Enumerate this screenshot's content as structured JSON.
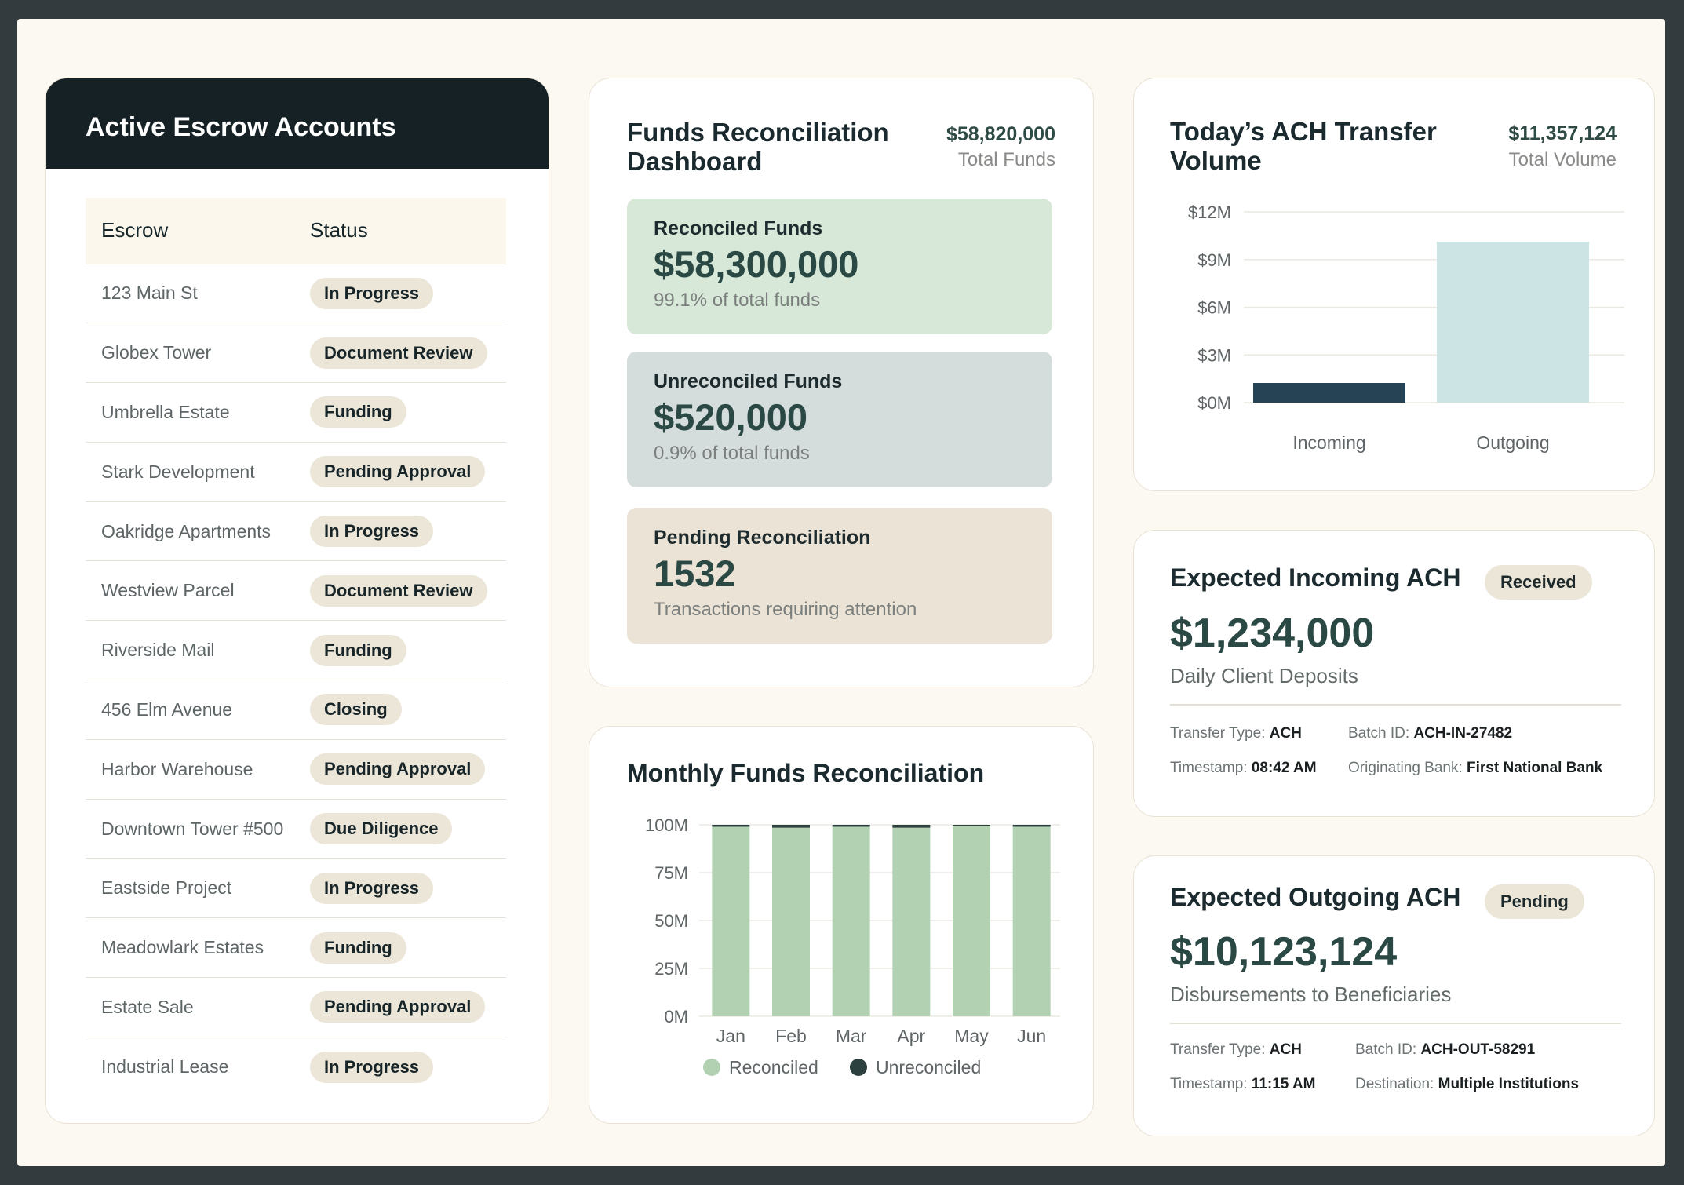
{
  "escrow": {
    "title": "Active Escrow Accounts",
    "columns": [
      "Escrow",
      "Status"
    ],
    "rows": [
      {
        "name": "123 Main St",
        "status": "In Progress"
      },
      {
        "name": "Globex Tower",
        "status": "Document Review"
      },
      {
        "name": "Umbrella Estate",
        "status": "Funding"
      },
      {
        "name": "Stark Development",
        "status": "Pending Approval"
      },
      {
        "name": "Oakridge Apartments",
        "status": "In Progress"
      },
      {
        "name": "Westview Parcel",
        "status": "Document Review"
      },
      {
        "name": "Riverside Mail",
        "status": "Funding"
      },
      {
        "name": "456 Elm Avenue",
        "status": "Closing"
      },
      {
        "name": "Harbor Warehouse",
        "status": "Pending Approval"
      },
      {
        "name": "Downtown Tower #500",
        "status": "Due Diligence"
      },
      {
        "name": "Eastside Project",
        "status": "In Progress"
      },
      {
        "name": "Meadowlark Estates",
        "status": "Funding"
      },
      {
        "name": "Estate Sale",
        "status": "Pending Approval"
      },
      {
        "name": "Industrial Lease",
        "status": "In Progress"
      }
    ]
  },
  "reconciliation": {
    "title_line1": "Funds Reconciliation",
    "title_line2": "Dashboard",
    "total_amount": "$58,820,000",
    "total_label": "Total Funds",
    "reconciled": {
      "label": "Reconciled Funds",
      "value": "$58,300,000",
      "sub": "99.1% of total funds",
      "color": "#d7e7d8"
    },
    "unreconciled": {
      "label": "Unreconciled Funds",
      "value": "$520,000",
      "sub": "0.9% of total funds",
      "color": "#d4dcdc"
    },
    "pending": {
      "label": "Pending Reconciliation",
      "value": "1532",
      "sub": "Transactions requiring attention",
      "color": "#ebe3d5"
    }
  },
  "ach_volume": {
    "title_line1": "Today’s ACH Transfer",
    "title_line2": "Volume",
    "total_amount": "$11,357,124",
    "total_label": "Total Volume"
  },
  "incoming": {
    "title": "Expected Incoming ACH",
    "badge": "Received",
    "amount": "$1,234,000",
    "subtitle": "Daily Client Deposits",
    "transfer_type_label": "Transfer Type:",
    "transfer_type": "ACH",
    "batch_label": "Batch ID:",
    "batch": "ACH-IN-27482",
    "timestamp_label": "Timestamp:",
    "timestamp": "08:42 AM",
    "bank_label": "Originating Bank:",
    "bank": "First National Bank"
  },
  "outgoing": {
    "title": "Expected Outgoing ACH",
    "badge": "Pending",
    "amount": "$10,123,124",
    "subtitle": "Disbursements to Beneficiaries",
    "transfer_type_label": "Transfer Type:",
    "transfer_type": "ACH",
    "batch_label": "Batch ID:",
    "batch": "ACH-OUT-58291",
    "timestamp_label": "Timestamp:",
    "timestamp": "11:15 AM",
    "dest_label": "Destination:",
    "dest": "Multiple Institutions"
  },
  "chart_data": [
    {
      "type": "bar",
      "title": "Monthly Funds Reconciliation",
      "stacked": true,
      "categories": [
        "Jan",
        "Feb",
        "Mar",
        "Apr",
        "May",
        "Jun"
      ],
      "series": [
        {
          "name": "Reconciled",
          "values": [
            99,
            98.5,
            99,
            98.5,
            99.5,
            99
          ],
          "color": "#b2d1b3"
        },
        {
          "name": "Unreconciled",
          "values": [
            1,
            1.5,
            1,
            1.5,
            0.5,
            1
          ],
          "color": "#2c403f"
        }
      ],
      "yticks": [
        "0M",
        "25M",
        "50M",
        "75M",
        "100M"
      ],
      "ylim": [
        0,
        100
      ],
      "legend": "bottom"
    },
    {
      "type": "bar",
      "title": "Today’s ACH Transfer Volume",
      "categories": [
        "Incoming",
        "Outgoing"
      ],
      "values": [
        1.234,
        10.123
      ],
      "colors": [
        "#264356",
        "#cce4e4"
      ],
      "yticks": [
        "$0M",
        "$3M",
        "$6M",
        "$9M",
        "$12M"
      ],
      "ylim": [
        0,
        12
      ]
    }
  ]
}
